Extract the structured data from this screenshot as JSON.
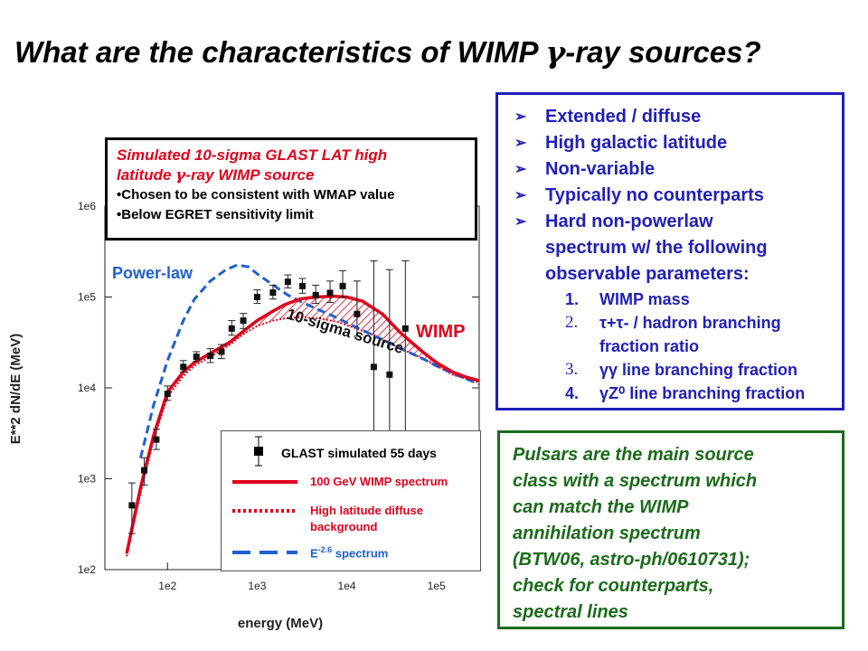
{
  "page": {
    "title_part1": "What are the characteristics of WIMP ",
    "title_gamma": "γ",
    "title_part2": "-ray sources?"
  },
  "sim_box": {
    "line1": "Simulated 10-sigma GLAST LAT high",
    "line2a": "latitude ",
    "line2_gamma": "γ",
    "line2b": "-ray WIMP source",
    "bullet1": "•Chosen to be consistent with WMAP value",
    "bullet2": "•Below EGRET sensitivity limit"
  },
  "characteristics": {
    "bullets": [
      "Extended / diffuse",
      "High galactic latitude",
      "Non-variable",
      "Typically no counterparts"
    ],
    "last_bullet_lines": [
      "Hard non-powerlaw",
      "spectrum w/ the following",
      "observable parameters:"
    ],
    "params": [
      {
        "num": "1.",
        "text": "WIMP mass"
      },
      {
        "num": "2.",
        "text": "τ+τ- / hadron branching"
      },
      {
        "num": "",
        "text": "fraction ratio"
      },
      {
        "num": "3.",
        "text": "γγ line branching fraction"
      },
      {
        "num": "4.",
        "text": "γZ⁰ line branching fraction"
      }
    ]
  },
  "pulsars": {
    "lines": [
      "Pulsars are the main source",
      "class with a spectrum which",
      "can match the WIMP",
      "annihilation spectrum",
      "(BTW06, astro-ph/0610731);",
      "check for counterparts,",
      "spectral lines"
    ]
  },
  "legend": {
    "glast": "GLAST simulated 55 days",
    "wimp": "100 GeV WIMP spectrum",
    "diffuse1": "High latitude diffuse",
    "diffuse2": "background",
    "e_base": "E",
    "e_exp": "-2.6",
    "e_rest": " spectrum"
  },
  "annotations": {
    "power_law": "Power-law",
    "ten_sigma": "10-sigma source",
    "wimp": "WIMP"
  },
  "colors": {
    "red": "#e1001b",
    "blue": "#1f5fd0",
    "char_border": "#1f1fb8",
    "pulsar": "#1a6b1a"
  },
  "chart_data": {
    "type": "line",
    "x_scale": "log",
    "y_scale": "log",
    "xlabel": "energy (MeV)",
    "ylabel": "E**2 dN/dE (MeV)",
    "xlim": [
      20,
      300000
    ],
    "ylim": [
      100,
      1000000
    ],
    "x_ticks": [
      {
        "v": 100,
        "label": "1e2"
      },
      {
        "v": 1000,
        "label": "1e3"
      },
      {
        "v": 10000,
        "label": "1e4"
      },
      {
        "v": 100000,
        "label": "1e5"
      }
    ],
    "y_ticks": [
      {
        "v": 100,
        "label": "1e2"
      },
      {
        "v": 1000,
        "label": "1e3"
      },
      {
        "v": 10000,
        "label": "1e4"
      },
      {
        "v": 100000,
        "label": "1e5"
      },
      {
        "v": 1000000,
        "label": "1e6"
      }
    ],
    "series": [
      {
        "name": "GLAST simulated 55 days",
        "kind": "points",
        "x": [
          40,
          55,
          75,
          100,
          150,
          210,
          300,
          400,
          520,
          700,
          1000,
          1500,
          2200,
          3200,
          4500,
          6500,
          9000,
          13000,
          20000,
          30000,
          45000
        ],
        "y": [
          510,
          1240,
          2700,
          8600,
          17000,
          22000,
          22500,
          25000,
          45000,
          55000,
          100000,
          112000,
          147000,
          132000,
          105000,
          111000,
          132000,
          65000,
          17000,
          14000,
          45000
        ],
        "err_lo": [
          250,
          850,
          2100,
          7300,
          15000,
          19500,
          19000,
          21000,
          38000,
          45000,
          85000,
          95000,
          126000,
          110000,
          85000,
          87000,
          100000,
          37000,
          1000,
          500,
          1000
        ],
        "err_hi": [
          900,
          1700,
          3500,
          10500,
          20000,
          25000,
          27000,
          30000,
          55000,
          66000,
          120000,
          135000,
          175000,
          160000,
          135000,
          150000,
          195000,
          150000,
          250000,
          200000,
          250000
        ]
      },
      {
        "name": "100 GeV WIMP spectrum",
        "kind": "line",
        "x": [
          35,
          50,
          70,
          100,
          150,
          200,
          300,
          500,
          700,
          1000,
          1500,
          2000,
          3000,
          4500,
          7000,
          10000,
          15000,
          25000,
          40000,
          70000,
          100000,
          150000,
          220000,
          300000
        ],
        "y": [
          150,
          800,
          3000,
          9000,
          15000,
          19000,
          24000,
          32000,
          42000,
          55000,
          70000,
          82000,
          95000,
          100000,
          102000,
          100000,
          90000,
          65000,
          40000,
          25000,
          19000,
          15000,
          13000,
          12000
        ]
      },
      {
        "name": "High latitude diffuse background",
        "kind": "line",
        "x": [
          35,
          50,
          70,
          100,
          150,
          200,
          300,
          500,
          700,
          1000,
          1500,
          2000,
          3000,
          5000,
          8000,
          12000,
          20000,
          40000,
          70000,
          100000,
          150000,
          220000,
          300000
        ],
        "y": [
          140,
          700,
          2700,
          8000,
          13500,
          17500,
          22000,
          30000,
          39000,
          48000,
          55000,
          58000,
          60000,
          58000,
          53000,
          46000,
          38000,
          27000,
          21000,
          17500,
          14000,
          12500,
          11500
        ]
      },
      {
        "name": "E^-2.6 spectrum",
        "kind": "line",
        "x": [
          50,
          70,
          100,
          150,
          200,
          300,
          450,
          600,
          800,
          1000,
          1300,
          1700,
          2200,
          3000,
          4500,
          7000,
          10000,
          15000,
          25000,
          40000,
          70000,
          100000,
          150000,
          220000,
          300000
        ],
        "y": [
          1700,
          6500,
          20000,
          55000,
          95000,
          150000,
          200000,
          225000,
          215000,
          180000,
          150000,
          125000,
          105000,
          90000,
          75000,
          62000,
          52000,
          43000,
          34000,
          27000,
          21000,
          17500,
          14500,
          12500,
          11000
        ]
      }
    ]
  }
}
